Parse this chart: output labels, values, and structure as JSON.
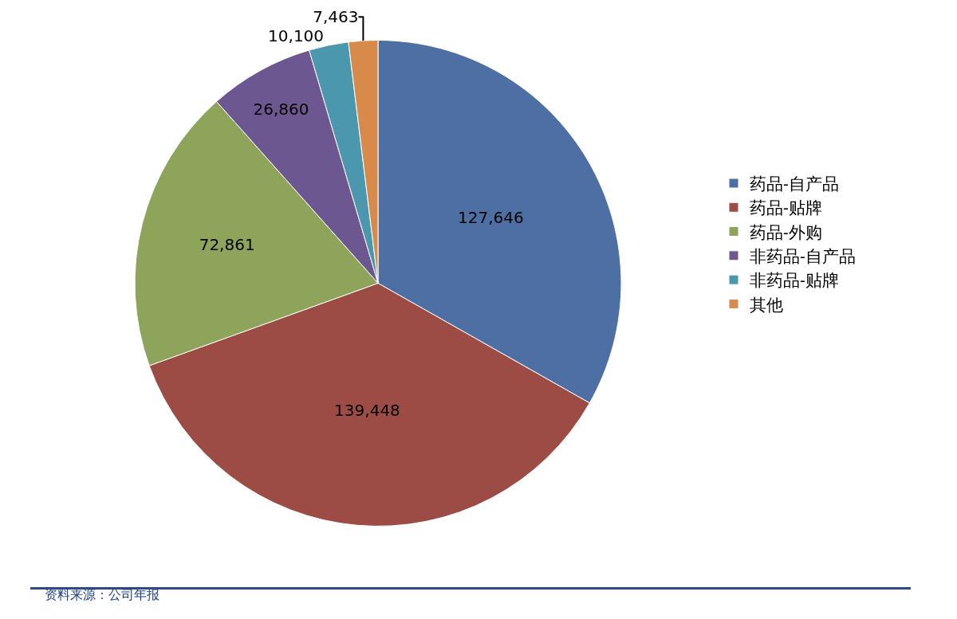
{
  "chart_data": {
    "type": "pie",
    "categories": [
      "药品-自产品",
      "药品-贴牌",
      "药品-外购",
      "非药品-自产品",
      "非药品-贴牌",
      "其他"
    ],
    "values": [
      127646,
      139448,
      72861,
      26860,
      10100,
      7463
    ],
    "colors": [
      "#4e6fa3",
      "#9c4b45",
      "#8ea45a",
      "#6c5790",
      "#4b97ad",
      "#d78a4a"
    ],
    "value_labels": [
      "127,646",
      "139,448",
      "72,861",
      "26,860",
      "10,100",
      "7,463"
    ],
    "legend": "right",
    "annotations": [
      "资料来源：公司年报"
    ]
  }
}
